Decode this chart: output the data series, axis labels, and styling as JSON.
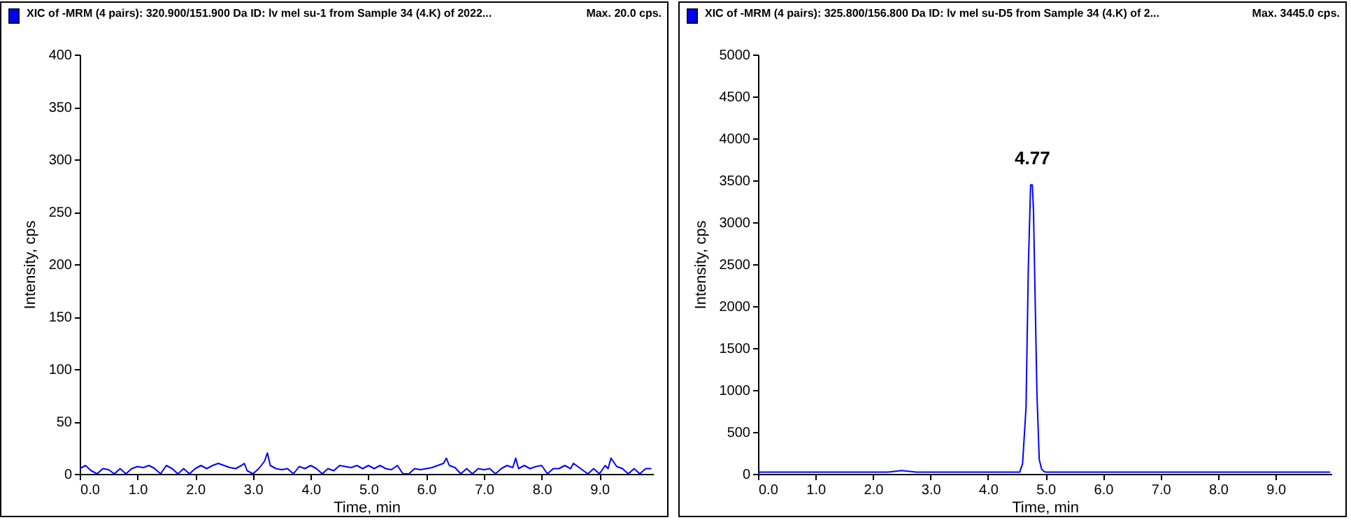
{
  "chart_data": [
    {
      "type": "line",
      "title": "XIC of -MRM (4 pairs): 320.900/151.900 Da ID: lv mel su-1 from Sample 34 (4.K) of 2022...",
      "annotations": [
        "Max. 20.0 cps."
      ],
      "xlabel": "Time, min",
      "ylabel": "Intensity, cps",
      "x": [
        0.0,
        0.1,
        0.2,
        0.3,
        0.4,
        0.5,
        0.6,
        0.7,
        0.8,
        0.9,
        1.0,
        1.1,
        1.2,
        1.3,
        1.4,
        1.5,
        1.6,
        1.7,
        1.8,
        1.9,
        2.0,
        2.1,
        2.2,
        2.3,
        2.4,
        2.5,
        2.6,
        2.7,
        2.8,
        2.85,
        2.9,
        3.0,
        3.1,
        3.2,
        3.25,
        3.3,
        3.4,
        3.5,
        3.6,
        3.7,
        3.8,
        3.9,
        4.0,
        4.1,
        4.2,
        4.3,
        4.4,
        4.5,
        4.6,
        4.7,
        4.8,
        4.9,
        5.0,
        5.1,
        5.2,
        5.3,
        5.4,
        5.5,
        5.6,
        5.7,
        5.8,
        5.9,
        6.0,
        6.1,
        6.2,
        6.3,
        6.35,
        6.4,
        6.5,
        6.6,
        6.7,
        6.8,
        6.9,
        7.0,
        7.1,
        7.2,
        7.3,
        7.4,
        7.5,
        7.55,
        7.6,
        7.7,
        7.8,
        7.9,
        8.0,
        8.1,
        8.2,
        8.3,
        8.4,
        8.5,
        8.55,
        8.6,
        8.7,
        8.8,
        8.9,
        9.0,
        9.1,
        9.15,
        9.2,
        9.3,
        9.4,
        9.5,
        9.6,
        9.7,
        9.8,
        9.9
      ],
      "series": [
        {
          "color": "#0000ff",
          "values": [
            5,
            8,
            3,
            0,
            5,
            4,
            0,
            5,
            0,
            5,
            7,
            6,
            8,
            5,
            0,
            8,
            5,
            0,
            5,
            0,
            5,
            8,
            5,
            8,
            10,
            8,
            6,
            5,
            8,
            10,
            3,
            0,
            5,
            12,
            20,
            8,
            5,
            4,
            5,
            0,
            7,
            5,
            8,
            5,
            0,
            5,
            3,
            8,
            7,
            6,
            8,
            5,
            8,
            5,
            8,
            5,
            4,
            8,
            0,
            0,
            5,
            4,
            5,
            6,
            8,
            10,
            15,
            8,
            6,
            0,
            5,
            0,
            5,
            4,
            5,
            0,
            5,
            8,
            6,
            15,
            5,
            8,
            5,
            7,
            8,
            0,
            5,
            5,
            8,
            5,
            10,
            8,
            4,
            0,
            5,
            0,
            8,
            5,
            15,
            7,
            5,
            0,
            5,
            0,
            5,
            5
          ]
        }
      ],
      "xlim": [
        0,
        9.93
      ],
      "ylim": [
        0,
        400
      ],
      "xticks": [
        {
          "value": 0,
          "label": "0.0"
        },
        {
          "value": 1,
          "label": "1.0"
        },
        {
          "value": 2,
          "label": "2.0"
        },
        {
          "value": 3,
          "label": "3.0"
        },
        {
          "value": 4,
          "label": "4.0"
        },
        {
          "value": 5,
          "label": "5.0"
        },
        {
          "value": 6,
          "label": "6.0"
        },
        {
          "value": 7,
          "label": "7.0"
        },
        {
          "value": 8,
          "label": "8.0"
        },
        {
          "value": 9,
          "label": "9.0"
        }
      ],
      "yticks": [
        0,
        50,
        100,
        150,
        200,
        250,
        300,
        350,
        400
      ],
      "marker": "none",
      "line_style": "solid"
    },
    {
      "type": "line",
      "title": "XIC of -MRM (4 pairs): 325.800/156.800 Da ID: lv mel su-D5 from Sample 34 (4.K) of 2...",
      "annotations": [
        "Max. 3445.0 cps.",
        {
          "text": "4.77",
          "x": 4.77,
          "y": 3445
        }
      ],
      "xlabel": "Time, min",
      "ylabel": "Intensity, cps",
      "x": [
        0.0,
        0.25,
        0.5,
        0.75,
        1.0,
        1.25,
        1.5,
        1.75,
        2.0,
        2.25,
        2.5,
        2.75,
        3.0,
        3.25,
        3.5,
        3.75,
        4.0,
        4.25,
        4.5,
        4.55,
        4.6,
        4.66,
        4.7,
        4.74,
        4.77,
        4.79,
        4.85,
        4.89,
        4.93,
        4.97,
        5.0,
        5.25,
        5.5,
        5.75,
        6.0,
        6.25,
        6.5,
        6.75,
        7.0,
        7.25,
        7.5,
        7.75,
        8.0,
        8.25,
        8.5,
        8.75,
        9.0,
        9.25,
        9.5,
        9.75,
        9.95
      ],
      "series": [
        {
          "color": "#0000ff",
          "values": [
            20,
            20,
            20,
            20,
            20,
            20,
            20,
            20,
            20,
            20,
            40,
            20,
            20,
            20,
            20,
            20,
            20,
            20,
            20,
            20,
            120,
            790,
            2460,
            3445,
            3445,
            3130,
            950,
            170,
            60,
            30,
            20,
            20,
            20,
            20,
            20,
            20,
            20,
            20,
            20,
            20,
            20,
            20,
            20,
            20,
            20,
            20,
            20,
            20,
            20,
            20,
            20
          ]
        }
      ],
      "xlim": [
        0,
        9.97
      ],
      "ylim": [
        0,
        5000
      ],
      "xticks": [
        {
          "value": 0,
          "label": "0.0"
        },
        {
          "value": 1,
          "label": "1.0"
        },
        {
          "value": 2,
          "label": "2.0"
        },
        {
          "value": 3,
          "label": "3.0"
        },
        {
          "value": 4,
          "label": "4.0"
        },
        {
          "value": 5,
          "label": "5.0"
        },
        {
          "value": 6,
          "label": "6.0"
        },
        {
          "value": 7,
          "label": "7.0"
        },
        {
          "value": 8,
          "label": "8.0"
        },
        {
          "value": 9,
          "label": "9.0"
        }
      ],
      "yticks": [
        0,
        500,
        1000,
        1500,
        2000,
        2500,
        3000,
        3500,
        4000,
        4500,
        5000
      ],
      "marker": "none",
      "line_style": "solid"
    }
  ]
}
